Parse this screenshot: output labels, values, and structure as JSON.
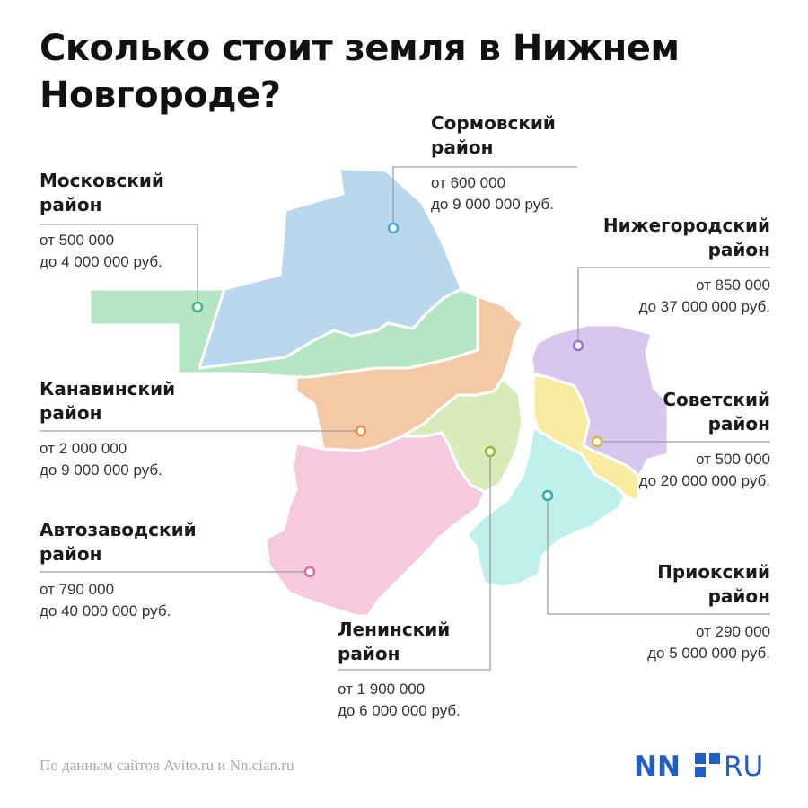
{
  "title": "Сколько стоит земля в Нижнем Новгороде?",
  "districts": {
    "sormovsky": {
      "name_line1": "Сормовский",
      "name_line2": "район",
      "price_from": "от 600 000",
      "price_to": "до 9 000 000 руб.",
      "color": "#b9d8ee",
      "marker": "#3fa9dc"
    },
    "moskovsky": {
      "name_line1": "Московский",
      "name_line2": "район",
      "price_from": "от 500 000",
      "price_to": "до 4 000 000 руб.",
      "color": "#b4e6c4",
      "marker": "#3cb878"
    },
    "nizhegorodsky": {
      "name_line1": "Нижегородский",
      "name_line2": "район",
      "price_from": "от 850 000",
      "price_to": "до 37 000 000 руб.",
      "color": "#d9c6ee",
      "marker": "#9b6fd6"
    },
    "kanavinsky": {
      "name_line1": "Канавинский",
      "name_line2": "район",
      "price_from": "от 2 000 000",
      "price_to": "до 9 000 000 руб.",
      "color": "#f3c9a6",
      "marker": "#ef8a3a"
    },
    "sovetsky": {
      "name_line1": "Советский",
      "name_line2": "район",
      "price_from": "от 500 000",
      "price_to": "до 20 000 000 руб.",
      "color": "#f7eca0",
      "marker": "#d8bd2a"
    },
    "avtozavodsky": {
      "name_line1": "Автозаводский",
      "name_line2": "район",
      "price_from": "от 790 000",
      "price_to": "до 40 000 000 руб.",
      "color": "#f6c9de",
      "marker": "#e06aa6"
    },
    "leninsky": {
      "name_line1": "Ленинский",
      "name_line2": "район",
      "price_from": "от 1 900 000",
      "price_to": "до 6 000 000 руб.",
      "color": "#d9ebb8",
      "marker": "#9bb832"
    },
    "priooksky": {
      "name_line1": "Приокский",
      "name_line2": "район",
      "price_from": "от 290 000",
      "price_to": "до 5 000 000 руб.",
      "color": "#bff0ec",
      "marker": "#27b0a0"
    }
  },
  "source": "По данным сайтов Avito.ru и Nn.cian.ru",
  "logo": {
    "left": "NN",
    "right": "RU",
    "color": "#1f5fc6"
  }
}
